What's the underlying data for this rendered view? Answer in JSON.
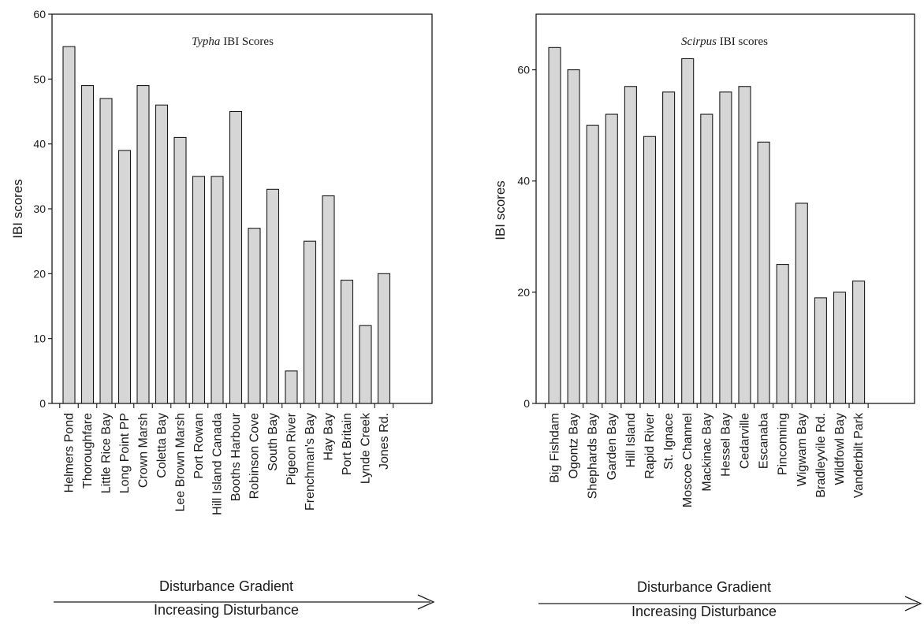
{
  "colors": {
    "bar_fill": "#d6d6d6",
    "stroke": "#1a1a1a",
    "background": "#ffffff"
  },
  "chart_data": [
    {
      "type": "bar",
      "title_italic": "Typha",
      "title_rest": " IBI Scores",
      "ylabel": "IBI scores",
      "xlabel": "",
      "ylim": [
        0,
        60
      ],
      "yticks": [
        0,
        10,
        20,
        30,
        40,
        50,
        60
      ],
      "grid": false,
      "categories": [
        "Helmers Pond",
        "Thoroughfare",
        "Little Rice Bay",
        "Long Point PP",
        "Crown Marsh",
        "Coletta Bay",
        "Lee Brown Marsh",
        "Port Rowan",
        "Hill Island Canada",
        "Booths Harbour",
        "Robinson Cove",
        "South Bay",
        "Pigeon River",
        "Frenchman's Bay",
        "Hay Bay",
        "Port Britain",
        "Lynde Creek",
        "Jones Rd."
      ],
      "values": [
        55,
        49,
        47,
        39,
        49,
        46,
        41,
        35,
        35,
        45,
        27,
        33,
        5,
        25,
        32,
        19,
        12,
        20
      ],
      "gradient_label": "Disturbance Gradient",
      "gradient_sublabel": "Increasing Disturbance"
    },
    {
      "type": "bar",
      "title_italic": "Scirpus",
      "title_rest": " IBI scores",
      "ylabel": "IBI scores",
      "xlabel": "",
      "ylim": [
        0,
        70
      ],
      "yticks": [
        0,
        20,
        40,
        60
      ],
      "grid": false,
      "categories": [
        "Big Fishdam",
        "Ogontz Bay",
        "Shephards Bay",
        "Garden Bay",
        "Hill Island",
        "Rapid River",
        "St. Ignace",
        "Moscoe Channel",
        "Mackinac Bay",
        "Hessel Bay",
        "Cedarville",
        "Escanaba",
        "Pinconning",
        "Wigwam Bay",
        "Bradleyvile Rd.",
        "Wildfowl Bay",
        "Vanderbilt Park"
      ],
      "values": [
        64,
        60,
        50,
        52,
        57,
        48,
        56,
        62,
        52,
        56,
        57,
        47,
        25,
        36,
        19,
        20,
        22
      ],
      "gradient_label": "Disturbance Gradient",
      "gradient_sublabel": "Increasing Disturbance"
    }
  ]
}
